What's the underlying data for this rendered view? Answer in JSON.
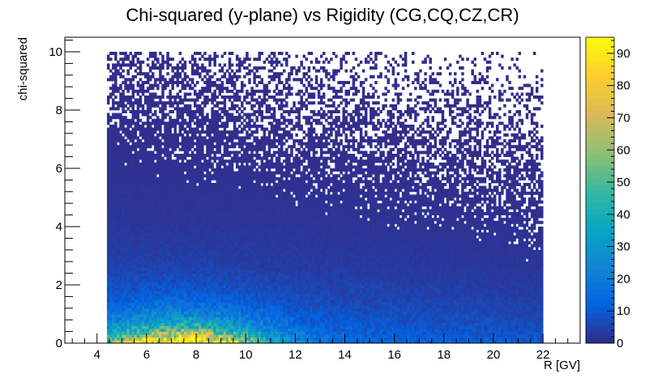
{
  "chart_data": {
    "type": "heatmap",
    "title": "Chi-squared (y-plane) vs Rigidity (CG,CQ,CZ,CR)",
    "xlabel": "R [GV]",
    "ylabel": "chi-squared",
    "xlim": [
      2.7,
      23.5
    ],
    "ylim": [
      0,
      10.5
    ],
    "x_ticks": [
      "4",
      "6",
      "8",
      "10",
      "12",
      "14",
      "16",
      "18",
      "20",
      "22"
    ],
    "y_ticks": [
      "0",
      "2",
      "4",
      "6",
      "8",
      "10"
    ],
    "x_range_filled": [
      4.4,
      22.0
    ],
    "y_range_filled": [
      0,
      10.0
    ],
    "peak": {
      "x": 7.5,
      "y": 0.7,
      "value": 92
    },
    "colorbar": {
      "min": 0,
      "max": 95,
      "ticks": [
        "0",
        "10",
        "20",
        "30",
        "40",
        "50",
        "60",
        "70",
        "80",
        "90"
      ],
      "palette": [
        "#352a87",
        "#0363e1",
        "#1485d4",
        "#06a7c6",
        "#38b99e",
        "#92bf73",
        "#d9ba56",
        "#fcce2e",
        "#f9fb0e"
      ]
    }
  }
}
